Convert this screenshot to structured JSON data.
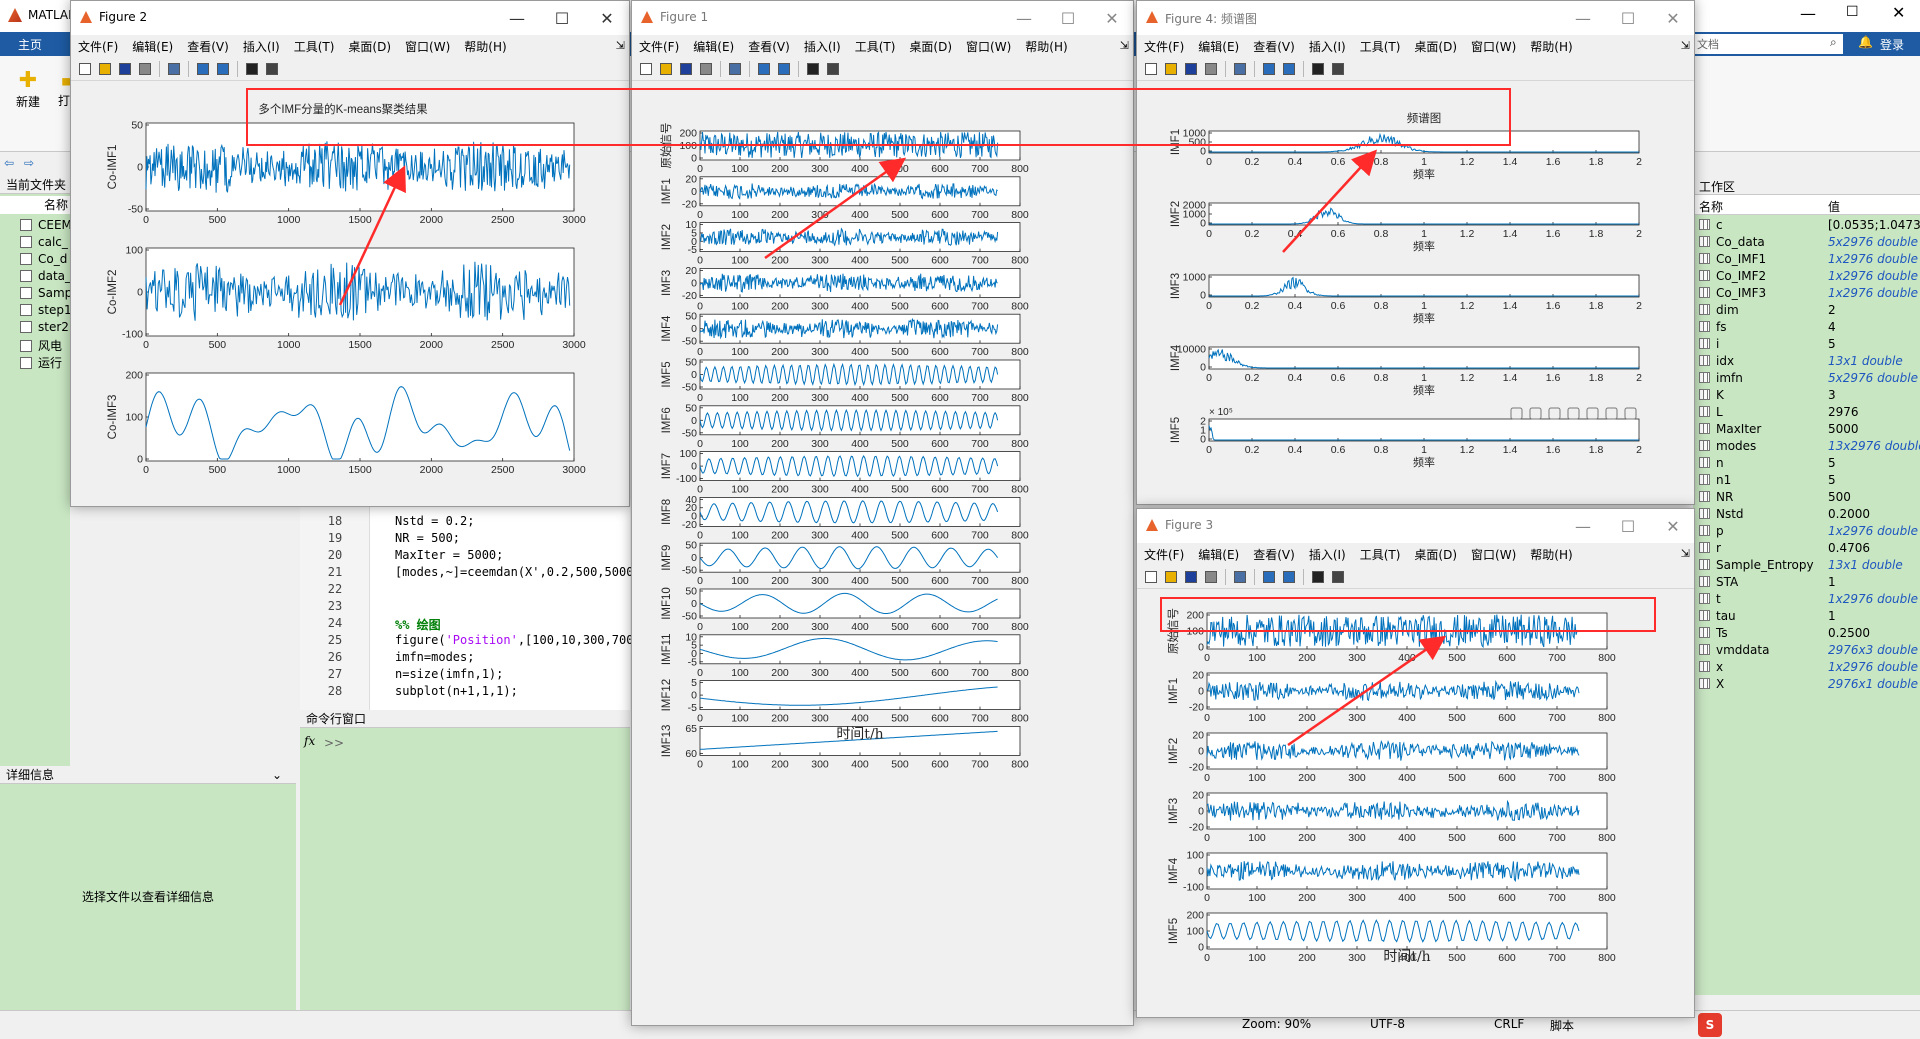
{
  "matlab": {
    "app_title": "MATLAB",
    "tab_home": "主页",
    "btn_new": "新建",
    "btn_open": "打开",
    "search_placeholder": "文档",
    "login": "登录",
    "current_folder": "当前文件夹",
    "col_name": "名称",
    "files": [
      "CEEM",
      "calc_",
      "Co_d",
      "data_",
      "Samp",
      "step1",
      "ster2",
      "风电",
      "运行"
    ],
    "details_header": "详细信息",
    "details_text": "选择文件以查看详细信息",
    "cmd_header": "命令行窗口",
    "cmd_prompt": ">>",
    "fx": "fx",
    "editor": {
      "lines": [
        {
          "n": "18",
          "code": "Nstd = 0.2;"
        },
        {
          "n": "19",
          "code": "NR = 500;"
        },
        {
          "n": "20",
          "code": "MaxIter = 5000;"
        },
        {
          "n": "21",
          "code": "[modes,~]=ceemdan(X',0.2,500,5000"
        },
        {
          "n": "22",
          "code": ""
        },
        {
          "n": "23",
          "code": ""
        },
        {
          "n": "24",
          "code": "%% 绘图"
        },
        {
          "n": "25",
          "code": "figure('Position',[100,10,300,700"
        },
        {
          "n": "26",
          "code": "imfn=modes;"
        },
        {
          "n": "27",
          "code": "n=size(imfn,1);"
        },
        {
          "n": "28",
          "code": "subplot(n+1,1,1);"
        }
      ]
    },
    "workspace": {
      "header": "工作区",
      "col_name": "名称",
      "col_value": "值",
      "rows": [
        {
          "name": "c",
          "value": "[0.0535;1.0473;0",
          "italic": false
        },
        {
          "name": "Co_data",
          "value": "5x2976 double",
          "italic": true
        },
        {
          "name": "Co_IMF1",
          "value": "1x2976 double",
          "italic": true
        },
        {
          "name": "Co_IMF2",
          "value": "1x2976 double",
          "italic": true
        },
        {
          "name": "Co_IMF3",
          "value": "1x2976 double",
          "italic": true
        },
        {
          "name": "dim",
          "value": "2",
          "italic": false
        },
        {
          "name": "fs",
          "value": "4",
          "italic": false
        },
        {
          "name": "i",
          "value": "5",
          "italic": false
        },
        {
          "name": "idx",
          "value": "13x1 double",
          "italic": true
        },
        {
          "name": "imfn",
          "value": "5x2976 double",
          "italic": true
        },
        {
          "name": "K",
          "value": "3",
          "italic": false
        },
        {
          "name": "L",
          "value": "2976",
          "italic": false
        },
        {
          "name": "MaxIter",
          "value": "5000",
          "italic": false
        },
        {
          "name": "modes",
          "value": "13x2976 double",
          "italic": true
        },
        {
          "name": "n",
          "value": "5",
          "italic": false
        },
        {
          "name": "n1",
          "value": "5",
          "italic": false
        },
        {
          "name": "NR",
          "value": "500",
          "italic": false
        },
        {
          "name": "Nstd",
          "value": "0.2000",
          "italic": false
        },
        {
          "name": "p",
          "value": "1x2976 double",
          "italic": true
        },
        {
          "name": "r",
          "value": "0.4706",
          "italic": false
        },
        {
          "name": "Sample_Entropy",
          "value": "13x1 double",
          "italic": true
        },
        {
          "name": "STA",
          "value": "1",
          "italic": false
        },
        {
          "name": "t",
          "value": "1x2976 double",
          "italic": true
        },
        {
          "name": "tau",
          "value": "1",
          "italic": false
        },
        {
          "name": "Ts",
          "value": "0.2500",
          "italic": false
        },
        {
          "name": "vmddata",
          "value": "2976x3 double",
          "italic": true
        },
        {
          "name": "x",
          "value": "1x2976 double",
          "italic": true
        },
        {
          "name": "X",
          "value": "2976x1 double",
          "italic": true
        }
      ]
    },
    "status": {
      "zoom": "Zoom: 90%",
      "encoding": "UTF-8",
      "eol": "CRLF",
      "type": "脚本"
    }
  },
  "menus": [
    "文件(F)",
    "编辑(E)",
    "查看(V)",
    "插入(I)",
    "工具(T)",
    "桌面(D)",
    "窗口(W)",
    "帮助(H)"
  ],
  "fig2": {
    "title": "Figure 2",
    "plot_title": "多个IMF分量的K-means聚类结果",
    "xticks": [
      "0",
      "500",
      "1000",
      "1500",
      "2000",
      "2500",
      "3000"
    ],
    "subplots": [
      {
        "ylabel": "Co-IMF1",
        "yticks": [
          "50",
          "0",
          "-50"
        ]
      },
      {
        "ylabel": "Co-IMF2",
        "yticks": [
          "100",
          "0",
          "-100"
        ]
      },
      {
        "ylabel": "Co-IMF3",
        "yticks": [
          "200",
          "100",
          "0"
        ]
      }
    ]
  },
  "fig1": {
    "title": "Figure 1",
    "xlabel": "时间t/h",
    "xticks": [
      "0",
      "100",
      "200",
      "300",
      "400",
      "500",
      "600",
      "700",
      "800"
    ],
    "subplots": [
      {
        "ylabel": "原始信号",
        "yticks": [
          "200",
          "100",
          "0"
        ]
      },
      {
        "ylabel": "IMF1",
        "yticks": [
          "20",
          "0",
          "-20"
        ]
      },
      {
        "ylabel": "IMF2",
        "yticks": [
          "10",
          "5",
          "0",
          "-5"
        ]
      },
      {
        "ylabel": "IMF3",
        "yticks": [
          "20",
          "0",
          "-20"
        ]
      },
      {
        "ylabel": "IMF4",
        "yticks": [
          "50",
          "0",
          "-50"
        ]
      },
      {
        "ylabel": "IMF5",
        "yticks": [
          "50",
          "0",
          "-50"
        ]
      },
      {
        "ylabel": "IMF6",
        "yticks": [
          "50",
          "0",
          "-50"
        ]
      },
      {
        "ylabel": "IMF7",
        "yticks": [
          "100",
          "0",
          "-100"
        ]
      },
      {
        "ylabel": "IMF8",
        "yticks": [
          "40",
          "20",
          "0",
          "-20"
        ]
      },
      {
        "ylabel": "IMF9",
        "yticks": [
          "50",
          "0",
          "-50"
        ]
      },
      {
        "ylabel": "IMF10",
        "yticks": [
          "50",
          "0",
          "-50"
        ]
      },
      {
        "ylabel": "IMF11",
        "yticks": [
          "10",
          "5",
          "0",
          "-5"
        ]
      },
      {
        "ylabel": "IMF12",
        "yticks": [
          "5",
          "0",
          "-5"
        ]
      },
      {
        "ylabel": "IMF13",
        "yticks": [
          "65",
          "60"
        ]
      }
    ]
  },
  "fig4": {
    "title": "Figure 4: 频谱图",
    "plot_title": "频谱图",
    "xlabel": "频率",
    "xticks": [
      "0",
      "0.2",
      "0.4",
      "0.6",
      "0.8",
      "1",
      "1.2",
      "1.4",
      "1.6",
      "1.8",
      "2"
    ],
    "exponent": "× 10⁵",
    "subplots": [
      {
        "ylabel": "IMF1",
        "yticks": [
          "1000",
          "500",
          "0"
        ]
      },
      {
        "ylabel": "IMF2",
        "yticks": [
          "2000",
          "1000",
          "0"
        ]
      },
      {
        "ylabel": "IMF3",
        "yticks": [
          "1000",
          "0"
        ]
      },
      {
        "ylabel": "IMF4",
        "yticks": [
          "10000",
          "0"
        ]
      },
      {
        "ylabel": "IMF5",
        "yticks": [
          "2",
          "1",
          "0"
        ]
      }
    ]
  },
  "fig3": {
    "title": "Figure 3",
    "xlabel": "时间t/h",
    "xticks": [
      "0",
      "100",
      "200",
      "300",
      "400",
      "500",
      "600",
      "700",
      "800"
    ],
    "subplots": [
      {
        "ylabel": "原始信号",
        "yticks": [
          "200",
          "100",
          "0"
        ]
      },
      {
        "ylabel": "IMF1",
        "yticks": [
          "20",
          "0",
          "-20"
        ]
      },
      {
        "ylabel": "IMF2",
        "yticks": [
          "20",
          "0",
          "-20"
        ]
      },
      {
        "ylabel": "IMF3",
        "yticks": [
          "20",
          "0",
          "-20"
        ]
      },
      {
        "ylabel": "IMF4",
        "yticks": [
          "100",
          "0",
          "-100"
        ]
      },
      {
        "ylabel": "IMF5",
        "yticks": [
          "200",
          "100",
          "0"
        ]
      }
    ]
  },
  "colors": {
    "signal": "#0072bd",
    "annotation": "#ff2a2a",
    "workspace_bg": "#c8e6c2",
    "ribbon": "#1e5ba3"
  }
}
